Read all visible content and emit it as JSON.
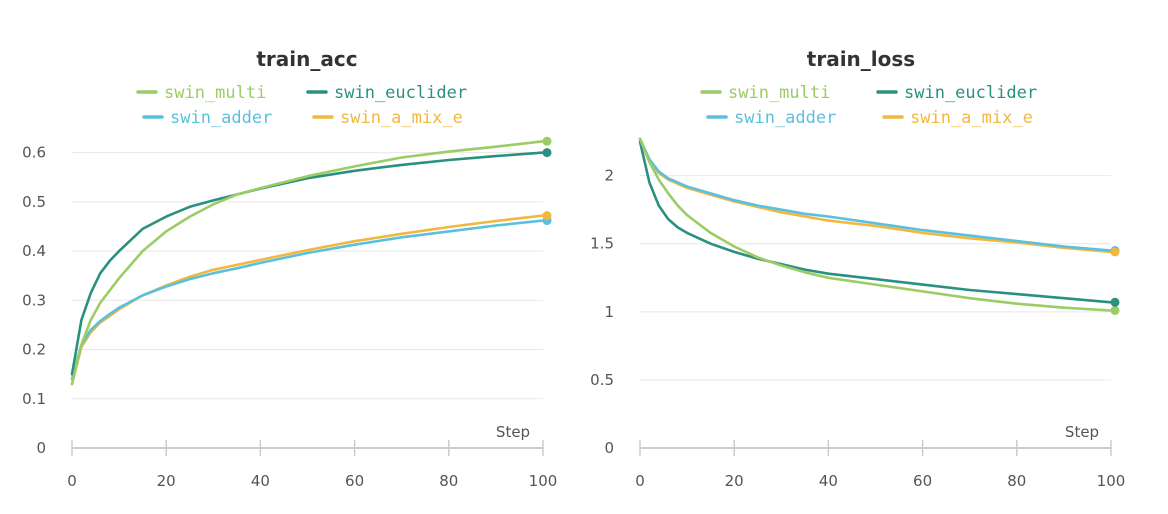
{
  "colors": {
    "swin_multi": "#9ccc65",
    "swin_euclider": "#2a9080",
    "swin_adder": "#5bc0de",
    "swin_a_mix_e": "#f0b840"
  },
  "chart_data": [
    {
      "type": "line",
      "title": "train_acc",
      "xlabel": "Step",
      "ylabel": "",
      "xlim": [
        0,
        100
      ],
      "ylim": [
        0,
        0.65
      ],
      "xticks": [
        0,
        20,
        40,
        60,
        80,
        100
      ],
      "yticks": [
        0,
        0.1,
        0.2,
        0.3,
        0.4,
        0.5,
        0.6
      ],
      "xtick_labels": [
        "0",
        "20",
        "40",
        "60",
        "80",
        "100"
      ],
      "ytick_labels": [
        "0",
        "0.1",
        "0.2",
        "0.3",
        "0.4",
        "0.5",
        "0.6"
      ],
      "grid": true,
      "legend_position": "top",
      "x": [
        0,
        2,
        4,
        6,
        8,
        10,
        15,
        20,
        25,
        30,
        35,
        40,
        50,
        60,
        70,
        80,
        90,
        100
      ],
      "series": [
        {
          "name": "swin_multi",
          "color": "#9ccc65",
          "values": [
            0.13,
            0.21,
            0.26,
            0.295,
            0.32,
            0.345,
            0.4,
            0.44,
            0.47,
            0.495,
            0.515,
            0.528,
            0.552,
            0.572,
            0.59,
            0.602,
            0.612,
            0.623
          ]
        },
        {
          "name": "swin_euclider",
          "color": "#2a9080",
          "values": [
            0.15,
            0.26,
            0.315,
            0.355,
            0.38,
            0.4,
            0.445,
            0.47,
            0.49,
            0.503,
            0.515,
            0.527,
            0.548,
            0.563,
            0.575,
            0.585,
            0.593,
            0.6
          ]
        },
        {
          "name": "swin_adder",
          "color": "#5bc0de",
          "values": [
            0.14,
            0.21,
            0.24,
            0.258,
            0.272,
            0.285,
            0.31,
            0.328,
            0.343,
            0.355,
            0.365,
            0.376,
            0.396,
            0.413,
            0.428,
            0.44,
            0.452,
            0.462
          ]
        },
        {
          "name": "swin_a_mix_e",
          "color": "#f0b840",
          "values": [
            0.13,
            0.205,
            0.235,
            0.255,
            0.268,
            0.282,
            0.31,
            0.33,
            0.348,
            0.362,
            0.372,
            0.382,
            0.402,
            0.42,
            0.435,
            0.449,
            0.461,
            0.472
          ]
        }
      ]
    },
    {
      "type": "line",
      "title": "train_loss",
      "xlabel": "Step",
      "ylabel": "",
      "xlim": [
        0,
        100
      ],
      "ylim": [
        0,
        2.35
      ],
      "xticks": [
        0,
        20,
        40,
        60,
        80,
        100
      ],
      "yticks": [
        0,
        0.5,
        1,
        1.5,
        2
      ],
      "xtick_labels": [
        "0",
        "20",
        "40",
        "60",
        "80",
        "100"
      ],
      "ytick_labels": [
        "0",
        "0.5",
        "1",
        "1.5",
        "2"
      ],
      "grid": true,
      "legend_position": "top",
      "x": [
        0,
        2,
        4,
        6,
        8,
        10,
        15,
        20,
        25,
        30,
        35,
        40,
        50,
        60,
        70,
        80,
        90,
        100
      ],
      "series": [
        {
          "name": "swin_multi",
          "color": "#9ccc65",
          "values": [
            2.27,
            2.1,
            1.97,
            1.87,
            1.78,
            1.71,
            1.58,
            1.48,
            1.4,
            1.34,
            1.29,
            1.25,
            1.2,
            1.15,
            1.1,
            1.06,
            1.03,
            1.01
          ]
        },
        {
          "name": "swin_euclider",
          "color": "#2a9080",
          "values": [
            2.25,
            1.95,
            1.78,
            1.68,
            1.62,
            1.58,
            1.5,
            1.44,
            1.39,
            1.35,
            1.31,
            1.28,
            1.24,
            1.2,
            1.16,
            1.13,
            1.1,
            1.07
          ]
        },
        {
          "name": "swin_adder",
          "color": "#5bc0de",
          "values": [
            2.27,
            2.12,
            2.03,
            1.98,
            1.95,
            1.92,
            1.87,
            1.82,
            1.78,
            1.75,
            1.72,
            1.7,
            1.65,
            1.6,
            1.56,
            1.52,
            1.48,
            1.45
          ]
        },
        {
          "name": "swin_a_mix_e",
          "color": "#f0b840",
          "values": [
            2.27,
            2.11,
            2.02,
            1.97,
            1.94,
            1.91,
            1.86,
            1.81,
            1.77,
            1.73,
            1.7,
            1.67,
            1.63,
            1.58,
            1.54,
            1.51,
            1.47,
            1.44
          ]
        }
      ]
    }
  ]
}
